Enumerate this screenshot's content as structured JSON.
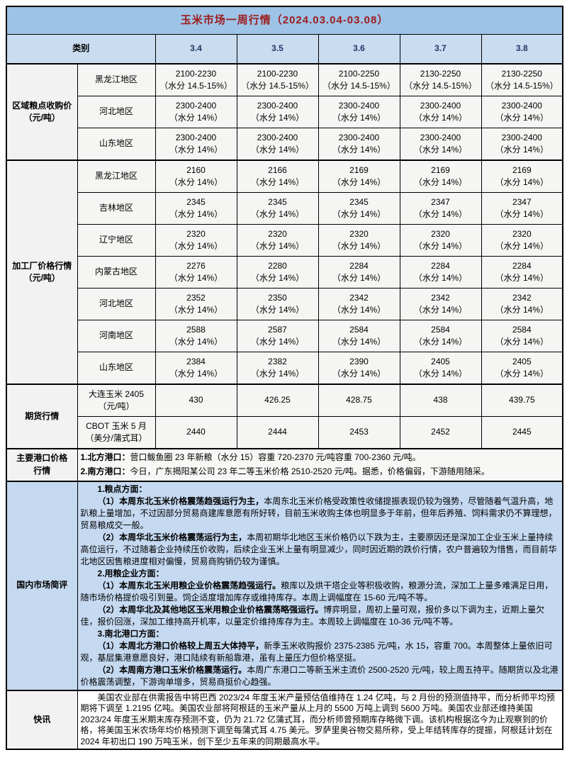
{
  "title": "玉米市场一周行情（2024.03.04-03.08）",
  "columns": {
    "category": "类别",
    "dates": [
      "3.4",
      "3.5",
      "3.6",
      "3.7",
      "3.8"
    ]
  },
  "region_purchase": {
    "label": "区域粮点收购价\n（元/吨）",
    "rows": [
      {
        "region": "黑龙江地区",
        "values": [
          "2100-2230\n（水分 14.5-15%）",
          "2100-2230\n（水分 14.5-15%）",
          "2100-2250\n（水分 14.5-15%）",
          "2130-2250\n（水分 14.5-15%）",
          "2130-2250\n（水分 14.5-15%）"
        ]
      },
      {
        "region": "河北地区",
        "values": [
          "2300-2400\n（水分 14%）",
          "2300-2400\n（水分 14%）",
          "2300-2400\n（水分 14%）",
          "2300-2400\n（水分 14%）",
          "2300-2400\n（水分 14%）"
        ]
      },
      {
        "region": "山东地区",
        "values": [
          "2300-2400\n（水分 14%）",
          "2300-2400\n（水分 14%）",
          "2300-2400\n（水分 14%）",
          "2300-2400\n（水分 14%）",
          "2300-2400\n（水分 14%）"
        ]
      }
    ]
  },
  "factory_price": {
    "label": "加工厂价格行情\n（元/吨）",
    "rows": [
      {
        "region": "黑龙江地区",
        "values": [
          "2160\n（水分 14%）",
          "2166\n（水分 14%）",
          "2169\n（水分 14%）",
          "2169\n（水分 14%）",
          "2169\n（水分 14%）"
        ]
      },
      {
        "region": "吉林地区",
        "values": [
          "2345\n（水分 14%）",
          "2345\n（水分 14%）",
          "2345\n（水分 14%）",
          "2347\n（水分 14%）",
          "2347\n（水分 14%）"
        ]
      },
      {
        "region": "辽宁地区",
        "values": [
          "2320\n（水分 14%）",
          "2320\n（水分 14%）",
          "2320\n（水分 14%）",
          "2320\n（水分 14%）",
          "2320\n（水分 14%）"
        ]
      },
      {
        "region": "内蒙古地区",
        "values": [
          "2276\n（水分 14%）",
          "2280\n（水分 14%）",
          "2284\n（水分 14%）",
          "2284\n（水分 14%）",
          "2284\n（水分 14%）"
        ]
      },
      {
        "region": "河北地区",
        "values": [
          "2352\n（水分 14%）",
          "2350\n（水分 14%）",
          "2342\n（水分 14%）",
          "2342\n（水分 14%）",
          "2342\n（水分 14%）"
        ]
      },
      {
        "region": "河南地区",
        "values": [
          "2588\n（水分 14%）",
          "2587\n（水分 14%）",
          "2584\n（水分 14%）",
          "2584\n（水分 14%）",
          "2584\n（水分 14%）"
        ]
      },
      {
        "region": "山东地区",
        "values": [
          "2384\n（水分 14%）",
          "2382\n（水分 14%）",
          "2390\n（水分 14%）",
          "2405\n（水分 14%）",
          "2405\n（水分 14%）"
        ]
      }
    ]
  },
  "futures": {
    "label": "期货行情",
    "rows": [
      {
        "name": "大连玉米 2405\n（元/吨）",
        "values": [
          "430",
          "426.25",
          "428.75",
          "438",
          "439.75"
        ]
      },
      {
        "name": "CBOT 玉米 5 月\n（美分/蒲式耳）",
        "values": [
          "2440",
          "2444",
          "2453",
          "2452",
          "2445"
        ]
      }
    ]
  },
  "ports": {
    "label": "主要港口价格\n行情",
    "lines": [
      {
        "lead": "1.北方港口：",
        "body": "营口鲅鱼圈 23 年新粮（水分 15）容重 720-2370 元/吨容重 700-2360 元/吨。"
      },
      {
        "lead": "2.南方港口：",
        "body": "今日，广东揭阳某公司 23 年二等玉米价格 2510-2520 元/吨。据悉，价格偏弱，下游随用随采。"
      }
    ]
  },
  "review": {
    "label": "国内市场简评",
    "paragraphs": [
      {
        "lead": "1.粮点方面：",
        "body": ""
      },
      {
        "lead": "（1）本周东北玉米价格震荡趋强运行为主，",
        "body": "本周东北玉米价格受政策性收储提振表现仍较为强势，尽管随着气温升高，地趴粮上量增加，不过因部分贸易商建库意愿有所好转，目前玉米收购主体也明显多于年前，但年后养殖、饲料需求仍不算理想，贸易粮成交一般。"
      },
      {
        "lead": "（2）本周华北玉米价格震荡运行为主，",
        "body": "本周初期华北地区玉米价格仍以下跌为主，主要原因还是深加工企业玉米上量持续高位运行，不过随着企业持续压价收购，后续企业玉米上量有明显减少，同时因近期的跌价行情，农户普遍较为惜售，而目前华北地区因售粮进度相对偏慢，贸易商购销仍较为谨慎。"
      },
      {
        "lead": "2.用粮企业方面：",
        "body": ""
      },
      {
        "lead": "（1）本周东北玉米用粮企业价格震荡趋强运行。",
        "body": "粮库以及烘干塔企业等积极收购，粮源分流，深加工上量多难满足日用，随市场价格提价吸引到量。饲企适度增加库存或维持库存。本周上调幅度在 15-60 元/吨不等。"
      },
      {
        "lead": "（2）本周华北及其他地区玉米用粮企业价格震荡略强运行。",
        "body": "博弈明显，周初上量可观，报价多以下调为主，近期上量欠佳，报价回涨，深加工维持高开机率，以量定价维持库存为主。本周较上调幅度在 10-36 元/吨不等。"
      },
      {
        "lead": "3.南北港口方面：",
        "body": ""
      },
      {
        "lead": "（1）本周北方港口价格较上周五大体持平，",
        "body": "新季玉米收购报价 2375-2385 元/吨，水 15，容重 700。本周整体上量依旧可观，基层集港意愿良好，港口陆续有新船靠港，虽有上量压力但价格坚挺。"
      },
      {
        "lead": "（2）本周南方港口玉米价格震荡运行。",
        "body": "本周广东港口二等新玉米主流价 2500-2520 元/吨，较上周五持平。随期货以及北港价格震荡调整，下游询单增多，贸易商挺价心趋强。"
      }
    ]
  },
  "news": {
    "label": "快讯",
    "text": "美国农业部在供需报告中将巴西 2023/24 年度玉米产量预估值维持在 1.24 亿吨，与 2 月份的预测值持平，而分析师平均预期将下调至 1.2195 亿吨。美国农业部将阿根廷的玉米产量从上月的 5500 万吨上调到 5600 万吨。美国农业部还维持美国 2023/24 年度玉米期末库存预测不变，仍为 21.72 亿蒲式耳，而分析师曾预期库存略微下调。该机构根据迄今为止观察到的价格，将美国玉米农场年均价格预测下调至每蒲式耳 4.75 美元。罗萨里奥谷物交易所称，受上年结转库存的提振，阿根廷计划在 2024 年初出口 190 万吨玉米，创下至少五年来的同期最高水平。"
  },
  "colors": {
    "title_bg": "#9dc3e6",
    "title_text": "#9b1b1b",
    "header_bg": "#c9dcf0",
    "header_date_text": "#1f3864",
    "review_bg": "#c5d9f1",
    "label_bg": "#f2f2f2",
    "border": "#000000"
  }
}
